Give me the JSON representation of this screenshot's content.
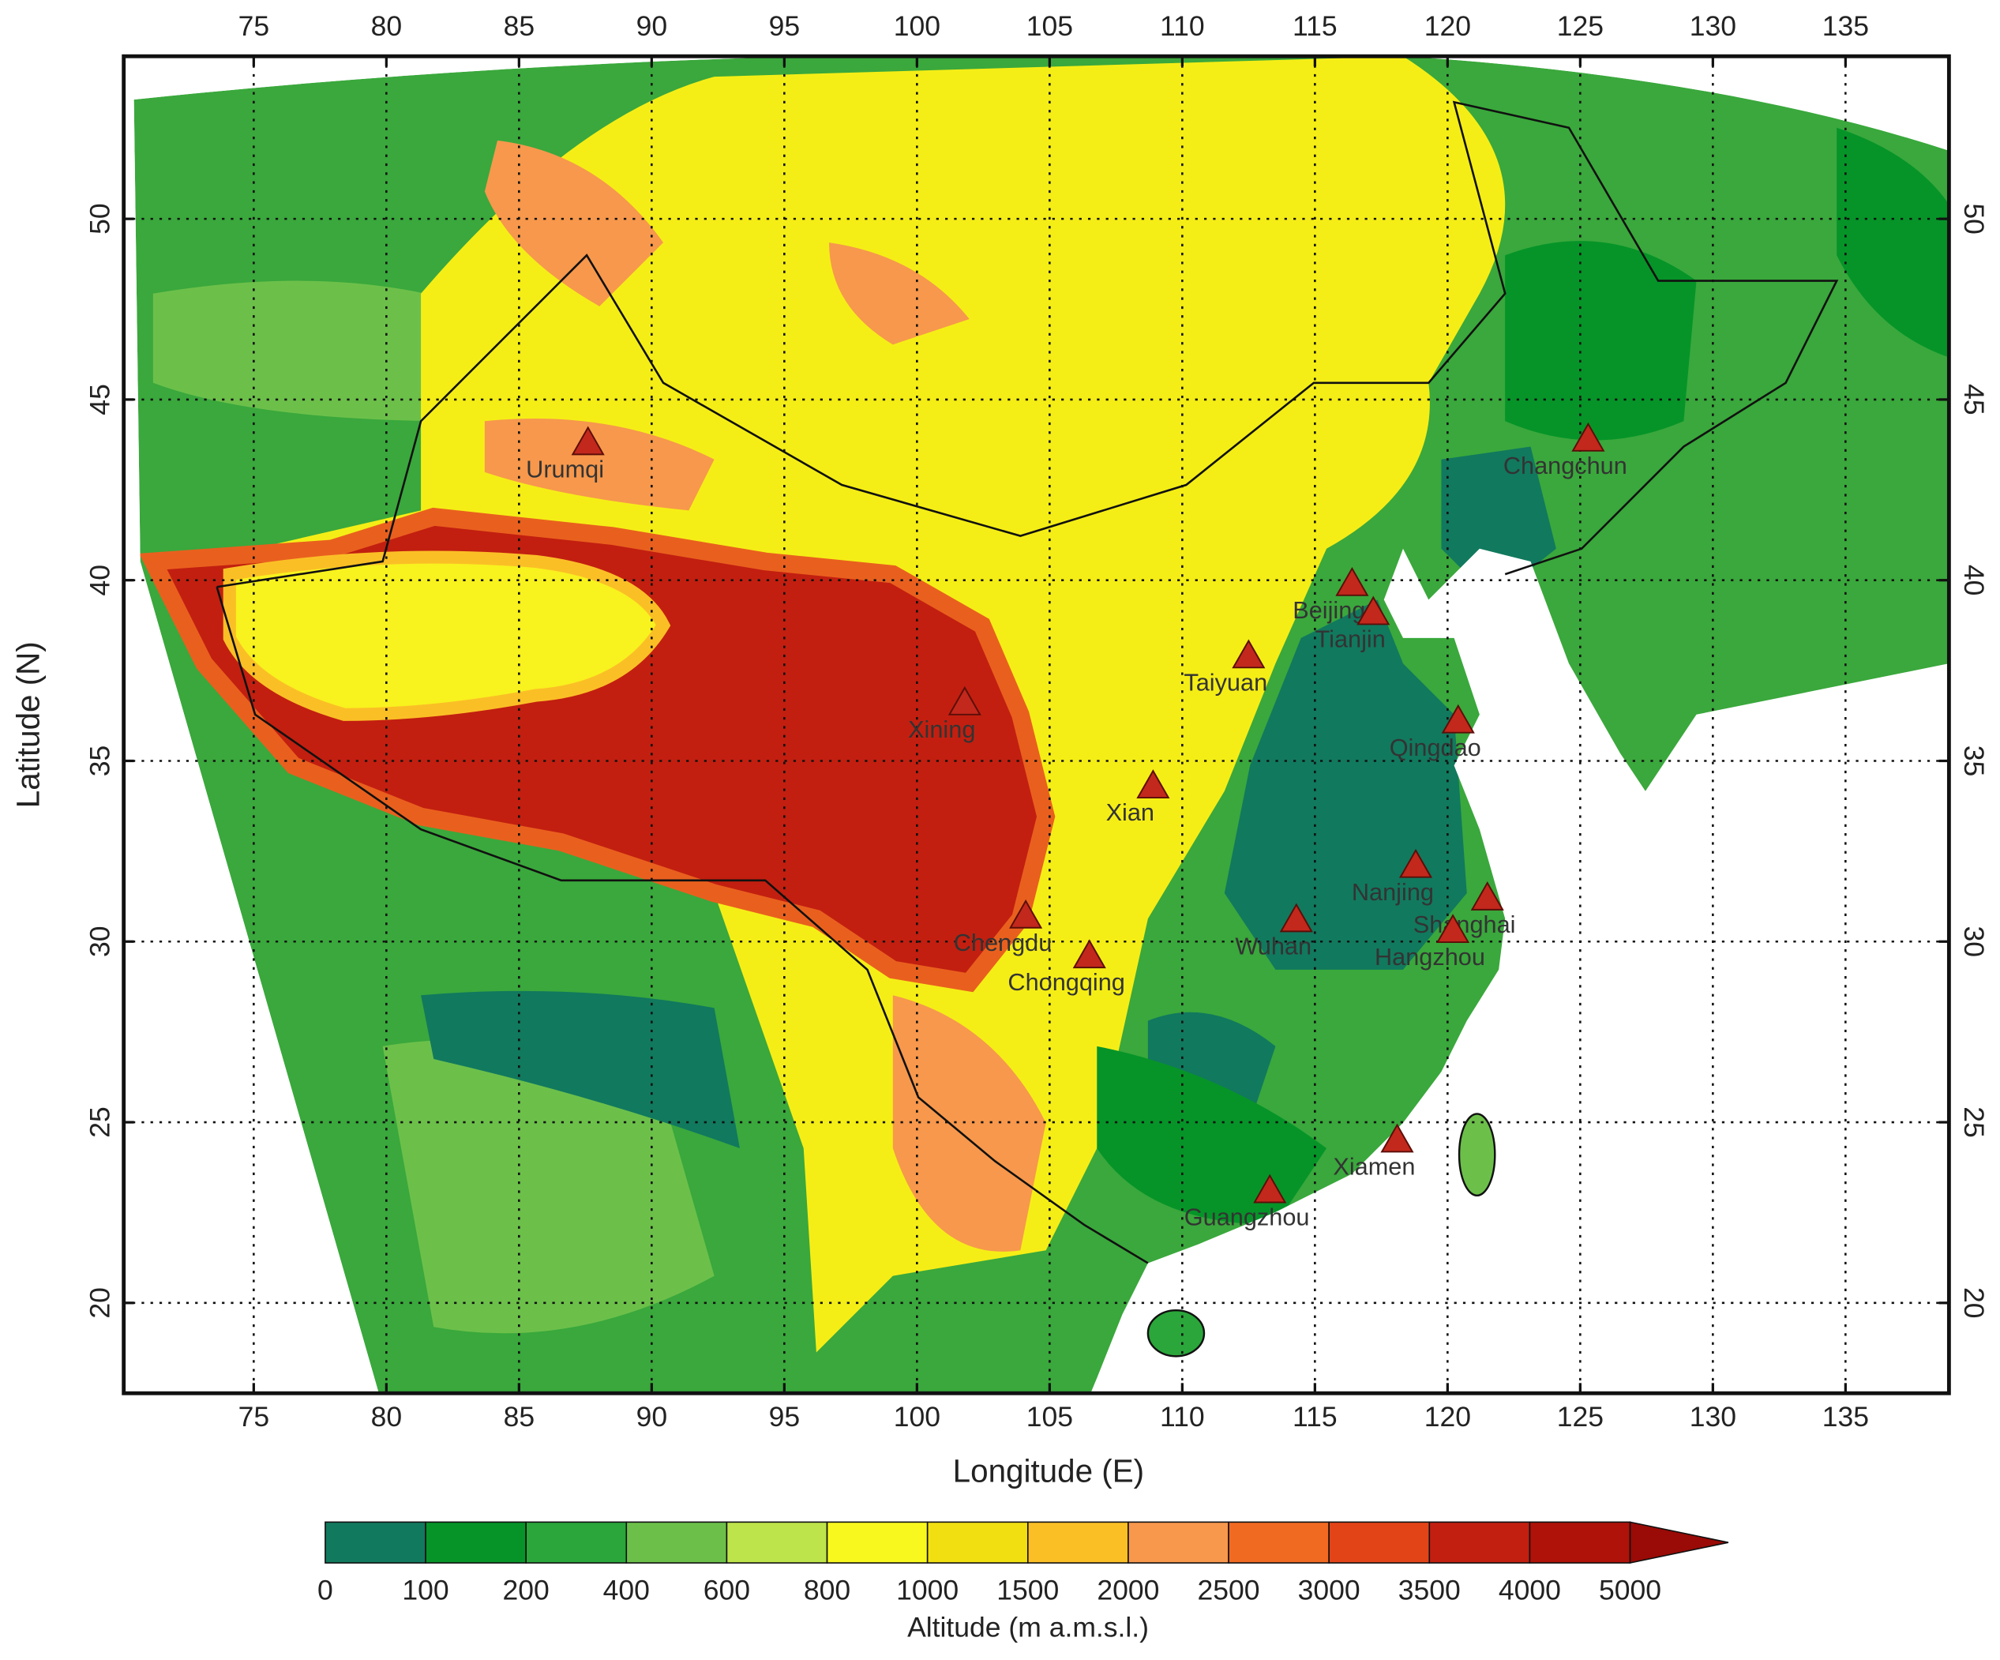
{
  "map": {
    "xlabel": "Longitude (E)",
    "ylabel": "Latitude (N)",
    "xlim": [
      70.1,
      138.9
    ],
    "ylim": [
      17.5,
      54.5
    ],
    "xticks": [
      75,
      80,
      85,
      90,
      95,
      100,
      105,
      110,
      115,
      120,
      125,
      130,
      135
    ],
    "yticks": [
      20,
      25,
      30,
      35,
      40,
      45,
      50
    ],
    "grid": true,
    "marker_color": "#c3281c",
    "cities": [
      {
        "name": "Urumqi",
        "lon": 87.6,
        "lat": 43.8
      },
      {
        "name": "Changchun",
        "lon": 125.3,
        "lat": 43.9
      },
      {
        "name": "Beijing",
        "lon": 116.4,
        "lat": 39.9
      },
      {
        "name": "Tianjin",
        "lon": 117.2,
        "lat": 39.1
      },
      {
        "name": "Taiyuan",
        "lon": 112.5,
        "lat": 37.9
      },
      {
        "name": "Xining",
        "lon": 101.8,
        "lat": 36.6
      },
      {
        "name": "Qingdao",
        "lon": 120.4,
        "lat": 36.1
      },
      {
        "name": "Xian",
        "lon": 108.9,
        "lat": 34.3
      },
      {
        "name": "Nanjing",
        "lon": 118.8,
        "lat": 32.1
      },
      {
        "name": "Shanghai",
        "lon": 121.5,
        "lat": 31.2
      },
      {
        "name": "Chengdu",
        "lon": 104.1,
        "lat": 30.7
      },
      {
        "name": "Wuhan",
        "lon": 114.3,
        "lat": 30.6
      },
      {
        "name": "Hangzhou",
        "lon": 120.2,
        "lat": 30.3
      },
      {
        "name": "Chongqing",
        "lon": 106.5,
        "lat": 29.6
      },
      {
        "name": "Xiamen",
        "lon": 118.1,
        "lat": 24.5
      },
      {
        "name": "Guangzhou",
        "lon": 113.3,
        "lat": 23.1
      }
    ],
    "colorbar": {
      "title": "Altitude (m a.m.s.l.)",
      "labels": [
        0,
        100,
        200,
        400,
        600,
        800,
        1000,
        1500,
        2000,
        2500,
        3000,
        3500,
        4000,
        5000
      ],
      "colors": [
        "#11795e",
        "#069428",
        "#2aa63a",
        "#6cc04a",
        "#bde44a",
        "#f8f81e",
        "#f2df12",
        "#fbbf26",
        "#f7984c",
        "#f16a22",
        "#e34417",
        "#c21f10",
        "#ae1209",
        "#9a0a06"
      ]
    }
  }
}
